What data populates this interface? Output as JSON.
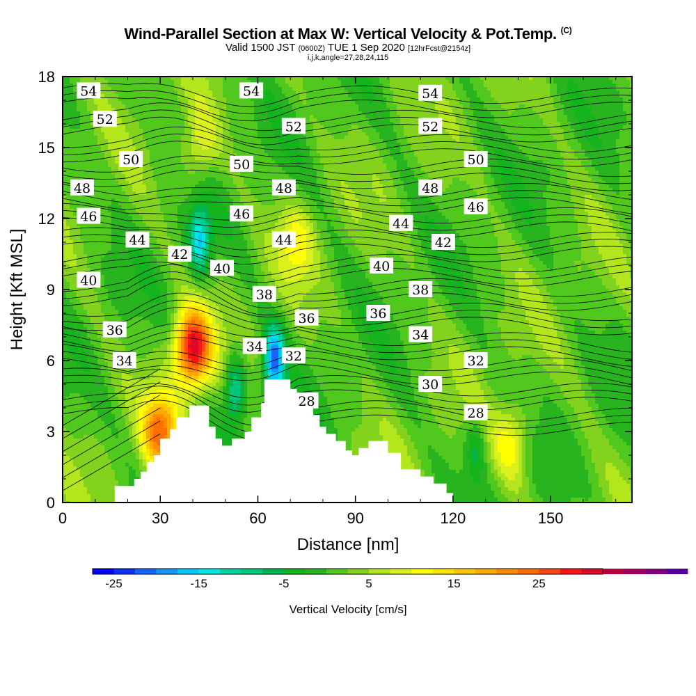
{
  "title": "Wind-Parallel Section at Max W: Vertical Velocity & Pot.Temp.",
  "copyright_mark": "(C)",
  "subtitle": {
    "valid": "Valid 1500 JST",
    "zulu": "(0600Z)",
    "day": "TUE 1 Sep 2020",
    "fcst": "[12hrFcst@2154z]"
  },
  "ijk_line": "i,j,k,angle=27,28,24,115",
  "chart_data": {
    "type": "heatmap",
    "xlabel": "Distance [nm]",
    "ylabel": "Height [Kft MSL]",
    "xlim": [
      0,
      175
    ],
    "ylim": [
      0,
      18
    ],
    "x_ticks": [
      "0",
      "30",
      "60",
      "90",
      "120",
      "150"
    ],
    "y_ticks": [
      "0",
      "3",
      "6",
      "9",
      "12",
      "15",
      "18"
    ],
    "grid": false,
    "colorbar": {
      "label": "Vertical Velocity [cm/s]",
      "tick_labels": [
        "-25",
        "-15",
        "-5",
        "5",
        "15",
        "25"
      ],
      "min": -27.5,
      "max": 32.5,
      "step": 2.5,
      "colors": [
        "#0000ff",
        "#0a32ff",
        "#1464ff",
        "#1496ff",
        "#00c8ff",
        "#00e6e6",
        "#00d2a0",
        "#00c878",
        "#00b450",
        "#14b41e",
        "#28b41e",
        "#50c81e",
        "#82d21e",
        "#b4e61e",
        "#dcf01e",
        "#ffff00",
        "#ffe600",
        "#ffc800",
        "#ffaa00",
        "#ff8c00",
        "#ff6e00",
        "#ff4614",
        "#ff1414",
        "#dc0a28",
        "#b4003c",
        "#96005a",
        "#780078",
        "#500096"
      ]
    },
    "theta_contours_degF": [
      28,
      30,
      32,
      34,
      36,
      38,
      40,
      42,
      44,
      46,
      48,
      50,
      52,
      54
    ],
    "contour_labels": [
      {
        "text": "54",
        "x": 8,
        "y": 17.4
      },
      {
        "text": "54",
        "x": 58,
        "y": 17.4
      },
      {
        "text": "54",
        "x": 113,
        "y": 17.3
      },
      {
        "text": "52",
        "x": 13,
        "y": 16.2
      },
      {
        "text": "52",
        "x": 71,
        "y": 15.9
      },
      {
        "text": "52",
        "x": 113,
        "y": 15.9
      },
      {
        "text": "50",
        "x": 21,
        "y": 14.5
      },
      {
        "text": "50",
        "x": 55,
        "y": 14.3
      },
      {
        "text": "50",
        "x": 127,
        "y": 14.5
      },
      {
        "text": "48",
        "x": 6,
        "y": 13.3
      },
      {
        "text": "48",
        "x": 68,
        "y": 13.3
      },
      {
        "text": "48",
        "x": 113,
        "y": 13.3
      },
      {
        "text": "46",
        "x": 8,
        "y": 12.1
      },
      {
        "text": "46",
        "x": 55,
        "y": 12.2
      },
      {
        "text": "46",
        "x": 127,
        "y": 12.5
      },
      {
        "text": "44",
        "x": 23,
        "y": 11.1
      },
      {
        "text": "44",
        "x": 68,
        "y": 11.1
      },
      {
        "text": "44",
        "x": 104,
        "y": 11.8
      },
      {
        "text": "42",
        "x": 36,
        "y": 10.5
      },
      {
        "text": "42",
        "x": 117,
        "y": 11.0
      },
      {
        "text": "40",
        "x": 8,
        "y": 9.4
      },
      {
        "text": "40",
        "x": 49,
        "y": 9.9
      },
      {
        "text": "40",
        "x": 98,
        "y": 10.0
      },
      {
        "text": "38",
        "x": 62,
        "y": 8.8
      },
      {
        "text": "38",
        "x": 110,
        "y": 9.0
      },
      {
        "text": "36",
        "x": 16,
        "y": 7.3
      },
      {
        "text": "36",
        "x": 75,
        "y": 7.8
      },
      {
        "text": "36",
        "x": 97,
        "y": 8.0
      },
      {
        "text": "34",
        "x": 19,
        "y": 6.0
      },
      {
        "text": "34",
        "x": 59,
        "y": 6.6
      },
      {
        "text": "34",
        "x": 110,
        "y": 7.1
      },
      {
        "text": "32",
        "x": 71,
        "y": 6.2
      },
      {
        "text": "32",
        "x": 127,
        "y": 6.0
      },
      {
        "text": "30",
        "x": 113,
        "y": 5.0
      },
      {
        "text": "28",
        "x": 75,
        "y": 4.3
      },
      {
        "text": "28",
        "x": 127,
        "y": 3.8
      }
    ],
    "terrain_kft": [
      [
        16,
        0.4
      ],
      [
        16,
        0.7
      ],
      [
        22,
        0.7
      ],
      [
        22,
        1.0
      ],
      [
        24,
        1.0
      ],
      [
        24,
        1.3
      ],
      [
        26,
        1.3
      ],
      [
        26,
        1.7
      ],
      [
        28,
        1.7
      ],
      [
        28,
        2.0
      ],
      [
        30,
        2.0
      ],
      [
        30,
        2.7
      ],
      [
        33,
        2.7
      ],
      [
        33,
        3.1
      ],
      [
        35,
        3.1
      ],
      [
        35,
        3.6
      ],
      [
        39,
        3.6
      ],
      [
        39,
        4.1
      ],
      [
        45,
        4.1
      ],
      [
        45,
        3.2
      ],
      [
        47,
        3.2
      ],
      [
        47,
        2.7
      ],
      [
        49,
        2.7
      ],
      [
        49,
        2.4
      ],
      [
        52,
        2.4
      ],
      [
        52,
        2.7
      ],
      [
        56,
        2.7
      ],
      [
        56,
        3.0
      ],
      [
        58,
        3.0
      ],
      [
        58,
        3.6
      ],
      [
        61,
        3.6
      ],
      [
        61,
        4.2
      ],
      [
        62,
        4.2
      ],
      [
        62,
        5.2
      ],
      [
        70,
        5.2
      ],
      [
        70,
        4.8
      ],
      [
        72,
        4.8
      ],
      [
        72,
        4.6
      ],
      [
        74,
        4.6
      ],
      [
        74,
        4.2
      ],
      [
        77,
        4.2
      ],
      [
        77,
        3.7
      ],
      [
        79,
        3.7
      ],
      [
        79,
        3.2
      ],
      [
        81,
        3.2
      ],
      [
        81,
        2.9
      ],
      [
        84,
        2.9
      ],
      [
        84,
        2.6
      ],
      [
        87,
        2.6
      ],
      [
        87,
        2.2
      ],
      [
        89,
        2.2
      ],
      [
        89,
        2.0
      ],
      [
        91,
        2.0
      ],
      [
        91,
        2.3
      ],
      [
        94,
        2.3
      ],
      [
        94,
        2.6
      ],
      [
        100,
        2.6
      ],
      [
        100,
        2.1
      ],
      [
        104,
        2.1
      ],
      [
        104,
        1.4
      ],
      [
        110,
        1.4
      ],
      [
        110,
        1.1
      ],
      [
        114,
        1.1
      ],
      [
        114,
        0.8
      ],
      [
        118,
        0.8
      ],
      [
        118,
        0.4
      ],
      [
        120,
        0.4
      ],
      [
        120,
        0.0
      ],
      [
        16,
        0.0
      ]
    ],
    "features": [
      {
        "kind": "updraft",
        "x": 40,
        "y": 6.5,
        "w_cm_s": 30
      },
      {
        "kind": "updraft",
        "x": 30,
        "y": 3.0,
        "w_cm_s": 20
      },
      {
        "kind": "updraft",
        "x": 72,
        "y": 11.0,
        "w_cm_s": 8
      },
      {
        "kind": "updraft",
        "x": 42,
        "y": 15.0,
        "w_cm_s": 8
      },
      {
        "kind": "updraft",
        "x": 138,
        "y": 2.5,
        "w_cm_s": 10
      },
      {
        "kind": "downdraft",
        "x": 42,
        "y": 11.0,
        "w_cm_s": -16
      },
      {
        "kind": "downdraft",
        "x": 53,
        "y": 4.8,
        "w_cm_s": -14
      },
      {
        "kind": "downdraft",
        "x": 65,
        "y": 6.0,
        "w_cm_s": -22
      },
      {
        "kind": "downdraft",
        "x": 127,
        "y": 2.3,
        "w_cm_s": -7
      }
    ]
  }
}
